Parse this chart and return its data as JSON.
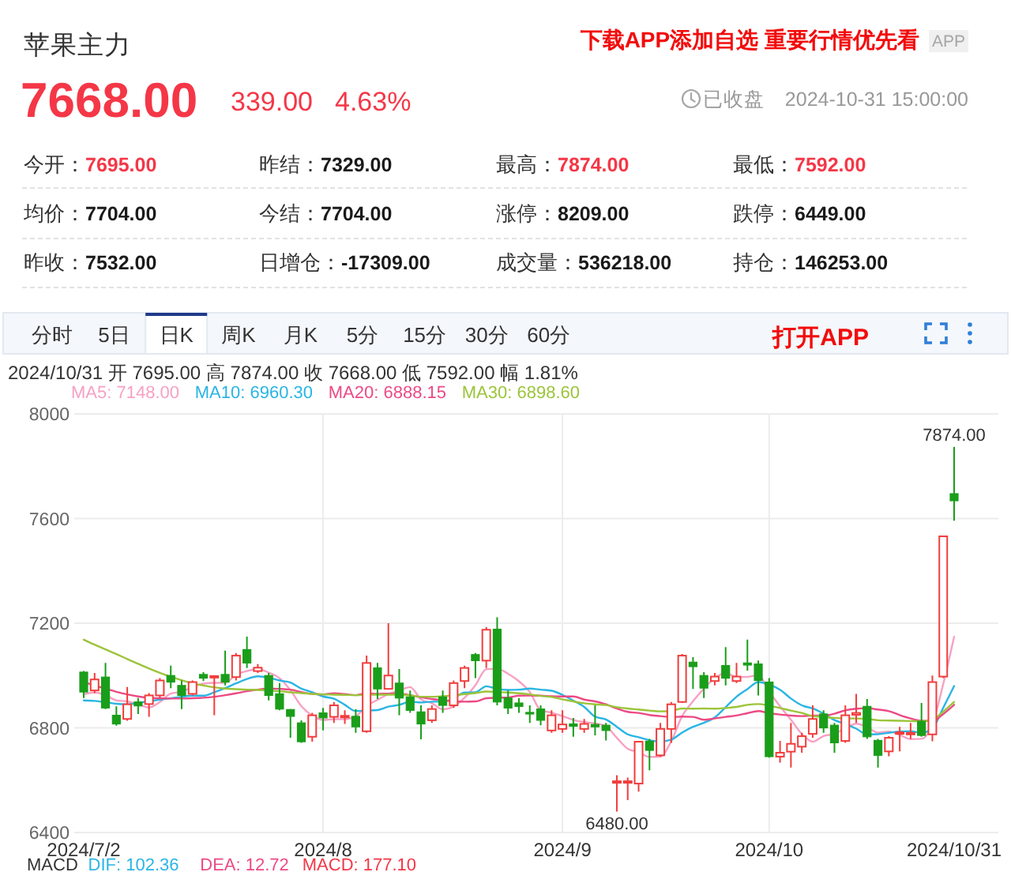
{
  "chart_data": [
    {
      "type": "other",
      "title": "苹果主力",
      "annotations": [
        "下载APP添加自选 重要行情优先看",
        "APP",
        "7668.00",
        "339.00",
        "4.63%",
        "已收盘",
        "2024-10-31 15:00:00",
        "今开：",
        "7695.00",
        "昨结：",
        "7329.00",
        "最高：",
        "7874.00",
        "最低：",
        "7592.00",
        "均价：",
        "7704.00",
        "今结：",
        "7704.00",
        "涨停：",
        "8209.00",
        "跌停：",
        "6449.00",
        "昨收：",
        "7532.00",
        "日增仓：",
        "-17309.00",
        "成交量：",
        "536218.00",
        "持仓：",
        "146253.00",
        "分时",
        "5日",
        "日K",
        "周K",
        "月K",
        "5分",
        "15分",
        "30分",
        "60分",
        "打开APP"
      ],
      "colors": [
        "#f20c0c",
        "#a6a6a6",
        "#f43747",
        "#f43747",
        "#f43747",
        "#999999",
        "#999999",
        "#333333",
        "#f43747",
        "#333333",
        "#1a1a1a",
        "#333333",
        "#f43747",
        "#333333",
        "#f43747",
        "#333333",
        "#1a1a1a",
        "#333333",
        "#1a1a1a",
        "#333333",
        "#1a1a1a",
        "#333333",
        "#1a1a1a",
        "#333333",
        "#1a1a1a",
        "#333333",
        "#1a1a1a",
        "#333333",
        "#1a1a1a",
        "#333333",
        "#1a1a1a",
        "#333333",
        "#333333",
        "#333333",
        "#333333",
        "#333333",
        "#333333",
        "#333333",
        "#333333",
        "#333333",
        "#f20c0c"
      ]
    },
    {
      "type": "candlestick",
      "categories": [
        "2024/7/2",
        null,
        null,
        null,
        null,
        null,
        null,
        null,
        null,
        null,
        null,
        null,
        null,
        null,
        null,
        null,
        null,
        null,
        null,
        null,
        null,
        null,
        "2024/8",
        null,
        null,
        null,
        null,
        null,
        null,
        null,
        null,
        null,
        null,
        null,
        null,
        null,
        null,
        null,
        null,
        null,
        null,
        null,
        null,
        null,
        "2024/9",
        null,
        null,
        null,
        null,
        null,
        null,
        null,
        null,
        null,
        null,
        null,
        null,
        null,
        null,
        null,
        null,
        null,
        null,
        "2024/10",
        null,
        null,
        null,
        null,
        null,
        null,
        null,
        null,
        null,
        null,
        null,
        null,
        null,
        null,
        null,
        null,
        "2024/10/31"
      ],
      "ohlc": [
        [
          7013,
          7017,
          6914,
          6937
        ],
        [
          6943,
          7010,
          6933,
          6985
        ],
        [
          6994,
          7048,
          6872,
          6876
        ],
        [
          6848,
          6882,
          6808,
          6815
        ],
        [
          6834,
          6956,
          6827,
          6890
        ],
        [
          6899,
          6914,
          6853,
          6884
        ],
        [
          6891,
          6933,
          6842,
          6924
        ],
        [
          6924,
          6990,
          6914,
          6981
        ],
        [
          7000,
          7038,
          6952,
          6975
        ],
        [
          6962,
          6981,
          6872,
          6924
        ],
        [
          6930,
          6981,
          6924,
          6975
        ],
        [
          7004,
          7013,
          6979,
          6990
        ],
        [
          6994,
          7000,
          6848,
          6998
        ],
        [
          7004,
          7095,
          6962,
          6975
        ],
        [
          6994,
          7086,
          6981,
          7076
        ],
        [
          7099,
          7149,
          7029,
          7048
        ],
        [
          7017,
          7044,
          7010,
          7030
        ],
        [
          7000,
          7010,
          6905,
          6924
        ],
        [
          6930,
          6971,
          6867,
          6872
        ],
        [
          6870,
          6872,
          6762,
          6844
        ],
        [
          6819,
          6829,
          6743,
          6747
        ],
        [
          6766,
          6857,
          6747,
          6848
        ],
        [
          6857,
          6876,
          6790,
          6838
        ],
        [
          6842,
          6899,
          6819,
          6886
        ],
        [
          6842,
          6867,
          6815,
          6846
        ],
        [
          6844,
          6872,
          6781,
          6804
        ],
        [
          6787,
          7076,
          6781,
          7048
        ],
        [
          7029,
          7048,
          6910,
          6949
        ],
        [
          6949,
          7200,
          6949,
          7000
        ],
        [
          6971,
          7025,
          6848,
          6914
        ],
        [
          6918,
          6943,
          6857,
          6867
        ],
        [
          6861,
          6886,
          6756,
          6815
        ],
        [
          6829,
          6886,
          6819,
          6872
        ],
        [
          6918,
          6943,
          6857,
          6886
        ],
        [
          6886,
          6981,
          6876,
          6971
        ],
        [
          6979,
          7038,
          6952,
          7029
        ],
        [
          7080,
          7086,
          6990,
          7057
        ],
        [
          7057,
          7185,
          7029,
          7175
        ],
        [
          7177,
          7223,
          6886,
          6899
        ],
        [
          6914,
          6943,
          6853,
          6876
        ],
        [
          6895,
          6914,
          6857,
          6882
        ],
        [
          6859,
          6886,
          6819,
          6855
        ],
        [
          6872,
          6886,
          6810,
          6829
        ],
        [
          6790,
          6867,
          6781,
          6848
        ],
        [
          6796,
          6867,
          6781,
          6813
        ],
        [
          6815,
          6838,
          6766,
          6806
        ],
        [
          6796,
          6834,
          6781,
          6815
        ],
        [
          6813,
          6886,
          6771,
          6804
        ],
        [
          6810,
          6819,
          6752,
          6790
        ],
        [
          6592,
          6619,
          6480,
          6596
        ],
        [
          6592,
          6610,
          6524,
          6596
        ],
        [
          6587,
          6750,
          6556,
          6747
        ],
        [
          6749,
          6758,
          6638,
          6714
        ],
        [
          6695,
          6819,
          6690,
          6796
        ],
        [
          6796,
          6899,
          6743,
          6890
        ],
        [
          6899,
          7082,
          6895,
          7076
        ],
        [
          7051,
          7070,
          6949,
          7034
        ],
        [
          7000,
          7013,
          6914,
          6952
        ],
        [
          6979,
          7010,
          6962,
          6996
        ],
        [
          7038,
          7109,
          6962,
          6990
        ],
        [
          6979,
          7048,
          6971,
          6996
        ],
        [
          7048,
          7137,
          7019,
          7040
        ],
        [
          7044,
          7057,
          6924,
          6981
        ],
        [
          6975,
          6990,
          6686,
          6690
        ],
        [
          6690,
          6750,
          6667,
          6705
        ],
        [
          6709,
          6819,
          6648,
          6739
        ],
        [
          6728,
          6781,
          6705,
          6768
        ],
        [
          6777,
          6886,
          6762,
          6834
        ],
        [
          6853,
          6867,
          6781,
          6800
        ],
        [
          6810,
          6819,
          6705,
          6743
        ],
        [
          6750,
          6886,
          6743,
          6848
        ],
        [
          6850,
          6930,
          6819,
          6857
        ],
        [
          6882,
          6910,
          6758,
          6766
        ],
        [
          6752,
          6758,
          6648,
          6695
        ],
        [
          6710,
          6768,
          6691,
          6762
        ],
        [
          6779,
          6804,
          6710,
          6783
        ],
        [
          6775,
          6819,
          6758,
          6781
        ],
        [
          6825,
          6895,
          6766,
          6771
        ],
        [
          6775,
          7000,
          6749,
          6975
        ],
        [
          6996,
          7533,
          6990,
          7532
        ],
        [
          7695,
          7874,
          7592,
          7668
        ]
      ],
      "colors": [
        "#1a9e1a",
        "#f23d3d",
        "#1a9e1a",
        "#1a9e1a",
        "#f23d3d",
        "#1a9e1a",
        "#f23d3d",
        "#f23d3d",
        "#1a9e1a",
        "#1a9e1a",
        "#f23d3d",
        "#1a9e1a",
        "#f23d3d",
        "#1a9e1a",
        "#f23d3d",
        "#1a9e1a",
        "#f23d3d",
        "#1a9e1a",
        "#1a9e1a",
        "#1a9e1a",
        "#1a9e1a",
        "#f23d3d",
        "#1a9e1a",
        "#f23d3d",
        "#f23d3d",
        "#1a9e1a",
        "#f23d3d",
        "#1a9e1a",
        "#f23d3d",
        "#1a9e1a",
        "#1a9e1a",
        "#1a9e1a",
        "#f23d3d",
        "#1a9e1a",
        "#f23d3d",
        "#f23d3d",
        "#1a9e1a",
        "#f23d3d",
        "#1a9e1a",
        "#1a9e1a",
        "#1a9e1a",
        "#1a9e1a",
        "#1a9e1a",
        "#f23d3d",
        "#f23d3d",
        "#1a9e1a",
        "#f23d3d",
        "#1a9e1a",
        "#1a9e1a",
        "#f23d3d",
        "#f23d3d",
        "#f23d3d",
        "#1a9e1a",
        "#f23d3d",
        "#f23d3d",
        "#f23d3d",
        "#1a9e1a",
        "#1a9e1a",
        "#f23d3d",
        "#1a9e1a",
        "#f23d3d",
        "#1a9e1a",
        "#1a9e1a",
        "#1a9e1a",
        "#f23d3d",
        "#f23d3d",
        "#f23d3d",
        "#f23d3d",
        "#1a9e1a",
        "#1a9e1a",
        "#f23d3d",
        "#f23d3d",
        "#1a9e1a",
        "#1a9e1a",
        "#f23d3d",
        "#f23d3d",
        "#f23d3d",
        "#1a9e1a",
        "#f23d3d",
        "#f23d3d",
        "#1a9e1a"
      ],
      "series": [
        {
          "name": "MA5: 7148.00",
          "type": "line",
          "color": "#f7a1c4",
          "values": [
            6928,
            6935,
            6925,
            6905,
            6901,
            6890,
            6878,
            6899,
            6931,
            6938,
            6956,
            6969,
            6972,
            6972,
            7003,
            7017,
            7025,
            7011,
            6990,
            6944,
            6883,
            6847,
            6830,
            6833,
            6833,
            6844,
            6884,
            6907,
            6929,
            6943,
            6956,
            6909,
            6894,
            6871,
            6882,
            6915,
            6963,
            7024,
            7026,
            7007,
            6978,
            6937,
            6868,
            6858,
            6845,
            6830,
            6822,
            6817,
            6806,
            6762,
            6720,
            6707,
            6689,
            6690,
            6749,
            6845,
            6902,
            6950,
            6990,
            7010,
            6994,
            6995,
            7001,
            6939,
            6882,
            6831,
            6777,
            6747,
            6769,
            6777,
            6799,
            6816,
            6803,
            6782,
            6786,
            6773,
            6757,
            6758,
            6814,
            6968,
            7148
          ]
        },
        {
          "name": "MA10: 6960.30",
          "type": "line",
          "color": "#2ab5e4",
          "values": [
            6905,
            6903,
            6898,
            6892,
            6890,
            6895,
            6902,
            6908,
            6913,
            6919,
            6923,
            6923,
            6936,
            6952,
            6970,
            6987,
            6997,
            6992,
            6981,
            6973,
            6950,
            6936,
            6920,
            6911,
            6888,
            6864,
            6866,
            6868,
            6881,
            6888,
            6900,
            6897,
            6900,
            6900,
            6913,
            6935,
            6936,
            6959,
            6949,
            6945,
            6946,
            6950,
            6946,
            6942,
            6926,
            6904,
            6880,
            6843,
            6832,
            6804,
            6775,
            6764,
            6753,
            6748,
            6755,
            6782,
            6804,
            6819,
            6840,
            6879,
            6919,
            6948,
            6975,
            6965,
            6946,
            6912,
            6886,
            6874,
            6854,
            6830,
            6815,
            6797,
            6775,
            6776,
            6781,
            6786,
            6787,
            6781,
            6798,
            6877,
            6960
          ]
        },
        {
          "name": "MA20: 6888.15",
          "type": "line",
          "color": "#ec4a85",
          "values": [
            6975,
            6962,
            6950,
            6938,
            6928,
            6920,
            6915,
            6913,
            6912,
            6912,
            6913,
            6915,
            6919,
            6925,
            6932,
            6940,
            6946,
            6950,
            6949,
            6946,
            6937,
            6930,
            6928,
            6932,
            6929,
            6925,
            6932,
            6930,
            6931,
            6931,
            6925,
            6917,
            6910,
            6906,
            6901,
            6900,
            6901,
            6913,
            6915,
            6916,
            6923,
            6924,
            6923,
            6921,
            6920,
            6920,
            6908,
            6901,
            6890,
            6874,
            6861,
            6857,
            6849,
            6845,
            6841,
            6843,
            6842,
            6831,
            6836,
            6842,
            6847,
            6856,
            6864,
            6856,
            6851,
            6847,
            6845,
            6847,
            6847,
            6854,
            6867,
            6873,
            6875,
            6870,
            6864,
            6849,
            6836,
            6827,
            6826,
            6853,
            6888
          ]
        },
        {
          "name": "MA30: 6898.60",
          "type": "line",
          "color": "#9cc43a",
          "values": [
            7137,
            7118,
            7100,
            7082,
            7063,
            7045,
            7027,
            7010,
            6995,
            6982,
            6970,
            6962,
            6955,
            6950,
            6948,
            6946,
            6945,
            6943,
            6940,
            6936,
            6933,
            6930,
            6928,
            6927,
            6926,
            6925,
            6926,
            6927,
            6927,
            6927,
            6924,
            6919,
            6919,
            6921,
            6924,
            6929,
            6933,
            6939,
            6937,
            6935,
            6932,
            6928,
            6922,
            6918,
            6909,
            6901,
            6894,
            6890,
            6887,
            6879,
            6874,
            6870,
            6866,
            6863,
            6865,
            6874,
            6873,
            6874,
            6873,
            6876,
            6880,
            6888,
            6891,
            6885,
            6876,
            6866,
            6857,
            6845,
            6842,
            6838,
            6836,
            6836,
            6834,
            6829,
            6828,
            6827,
            6826,
            6825,
            6831,
            6862,
            6899
          ]
        }
      ],
      "ylim": [
        6400,
        8000
      ],
      "yticks": [
        6400,
        6800,
        7200,
        7600,
        8000
      ],
      "grid": true,
      "legend": "top left",
      "annotations": [
        "2024/10/31 开 7695.00 高 7874.00 收 7668.00 低 7592.00 幅 1.81%",
        {
          "text": "7874.00",
          "x": "2024/10/31",
          "y": 7874
        },
        {
          "text": "6480.00",
          "y": 6480
        }
      ]
    },
    {
      "type": "other",
      "annotations": [
        "MACD",
        "DIF: 102.36",
        "DEA: 12.72",
        "MACD: 177.10"
      ],
      "colors": [
        "#333333",
        "#2ab5e4",
        "#ec4a85",
        "#f43747"
      ]
    }
  ]
}
